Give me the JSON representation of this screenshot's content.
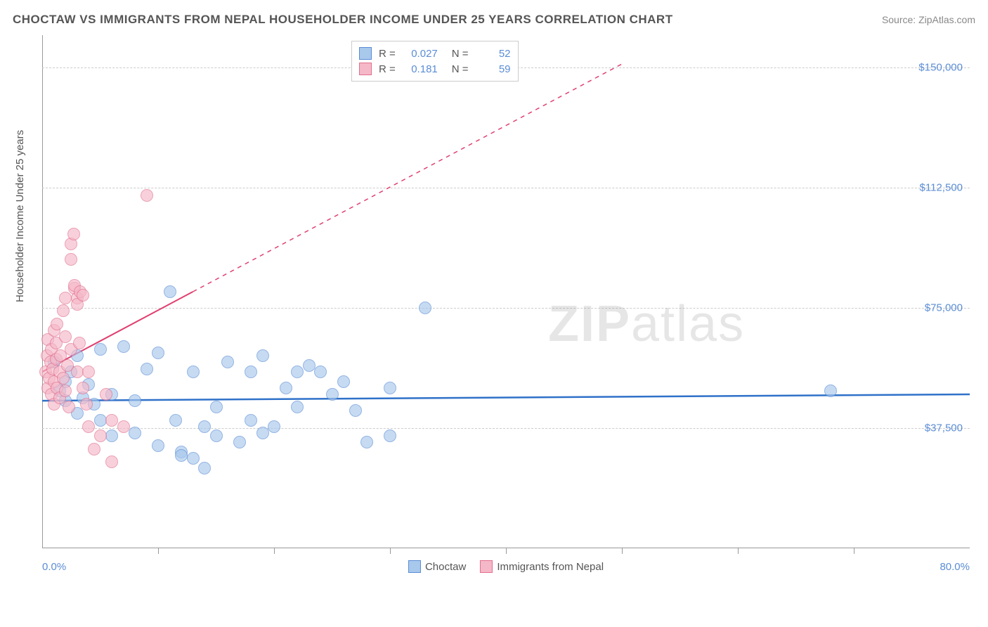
{
  "title": "CHOCTAW VS IMMIGRANTS FROM NEPAL HOUSEHOLDER INCOME UNDER 25 YEARS CORRELATION CHART",
  "source": "Source: ZipAtlas.com",
  "y_axis_label": "Householder Income Under 25 years",
  "watermark": "ZIPatlas",
  "chart": {
    "type": "scatter",
    "xlim": [
      0,
      80
    ],
    "ylim": [
      0,
      160000
    ],
    "x_tick_positions": [
      10,
      20,
      30,
      40,
      50,
      60,
      70
    ],
    "x_label_min": "0.0%",
    "x_label_max": "80.0%",
    "y_ticks": [
      {
        "v": 37500,
        "label": "$37,500"
      },
      {
        "v": 75000,
        "label": "$75,000"
      },
      {
        "v": 112500,
        "label": "$112,500"
      },
      {
        "v": 150000,
        "label": "$150,000"
      }
    ],
    "grid_color": "#cccccc",
    "background_color": "#ffffff",
    "series": [
      {
        "name": "Choctaw",
        "fill": "#a8c8ec",
        "stroke": "#5b8dd6",
        "r_value": "0.027",
        "n_value": "52",
        "trend": {
          "x1": 0,
          "y1": 46000,
          "x2": 80,
          "y2": 48000,
          "dash_from_x": 80,
          "stroke": "#2f71c9",
          "width": 2.5
        },
        "points": [
          [
            1,
            58000
          ],
          [
            1.5,
            49000
          ],
          [
            2,
            46000
          ],
          [
            2,
            52000
          ],
          [
            2.5,
            55000
          ],
          [
            3,
            42000
          ],
          [
            3,
            60000
          ],
          [
            3.5,
            47000
          ],
          [
            4,
            51000
          ],
          [
            4.5,
            45000
          ],
          [
            5,
            62000
          ],
          [
            5,
            40000
          ],
          [
            6,
            48000
          ],
          [
            6,
            35000
          ],
          [
            7,
            63000
          ],
          [
            8,
            46000
          ],
          [
            8,
            36000
          ],
          [
            9,
            56000
          ],
          [
            10,
            61000
          ],
          [
            10,
            32000
          ],
          [
            11,
            80000
          ],
          [
            11.5,
            40000
          ],
          [
            12,
            30000
          ],
          [
            12,
            29000
          ],
          [
            13,
            55000
          ],
          [
            13,
            28000
          ],
          [
            14,
            38000
          ],
          [
            14,
            25000
          ],
          [
            15,
            44000
          ],
          [
            15,
            35000
          ],
          [
            16,
            58000
          ],
          [
            17,
            33000
          ],
          [
            18,
            55000
          ],
          [
            18,
            40000
          ],
          [
            19,
            60000
          ],
          [
            19,
            36000
          ],
          [
            20,
            38000
          ],
          [
            21,
            50000
          ],
          [
            22,
            55000
          ],
          [
            22,
            44000
          ],
          [
            23,
            57000
          ],
          [
            24,
            55000
          ],
          [
            25,
            48000
          ],
          [
            26,
            52000
          ],
          [
            27,
            43000
          ],
          [
            28,
            33000
          ],
          [
            30,
            50000
          ],
          [
            30,
            35000
          ],
          [
            33,
            75000
          ],
          [
            68,
            49000
          ]
        ]
      },
      {
        "name": "Immigrants from Nepal",
        "fill": "#f5b8c8",
        "stroke": "#e16f8e",
        "r_value": "0.181",
        "n_value": "59",
        "trend": {
          "x1": 0,
          "y1": 55000,
          "x2": 13,
          "y2": 80000,
          "dash_from_x": 13,
          "dash_to_x": 50,
          "dash_to_y": 151000,
          "stroke": "#e04070",
          "width": 2
        },
        "points": [
          [
            0.3,
            55000
          ],
          [
            0.4,
            60000
          ],
          [
            0.5,
            50000
          ],
          [
            0.5,
            65000
          ],
          [
            0.6,
            53000
          ],
          [
            0.7,
            58000
          ],
          [
            0.8,
            48000
          ],
          [
            0.8,
            62000
          ],
          [
            0.9,
            56000
          ],
          [
            1,
            52000
          ],
          [
            1,
            68000
          ],
          [
            1,
            45000
          ],
          [
            1.2,
            59000
          ],
          [
            1.2,
            64000
          ],
          [
            1.3,
            50000
          ],
          [
            1.3,
            70000
          ],
          [
            1.5,
            55000
          ],
          [
            1.5,
            47000
          ],
          [
            1.6,
            60000
          ],
          [
            1.8,
            53000
          ],
          [
            1.8,
            74000
          ],
          [
            2,
            49000
          ],
          [
            2,
            66000
          ],
          [
            2,
            78000
          ],
          [
            2.2,
            57000
          ],
          [
            2.3,
            44000
          ],
          [
            2.5,
            62000
          ],
          [
            2.5,
            95000
          ],
          [
            2.5,
            90000
          ],
          [
            2.7,
            98000
          ],
          [
            2.8,
            81000
          ],
          [
            2.8,
            82000
          ],
          [
            3,
            55000
          ],
          [
            3,
            78000
          ],
          [
            3,
            76000
          ],
          [
            3.2,
            64000
          ],
          [
            3.3,
            80000
          ],
          [
            3.5,
            50000
          ],
          [
            3.5,
            79000
          ],
          [
            3.8,
            45000
          ],
          [
            4,
            55000
          ],
          [
            4,
            38000
          ],
          [
            4.5,
            31000
          ],
          [
            5,
            35000
          ],
          [
            5.5,
            48000
          ],
          [
            6,
            40000
          ],
          [
            6,
            27000
          ],
          [
            7,
            38000
          ],
          [
            9,
            110000
          ]
        ]
      }
    ]
  },
  "legend": {
    "items": [
      {
        "label": "Choctaw",
        "fill": "#a8c8ec",
        "stroke": "#5b8dd6"
      },
      {
        "label": "Immigrants from Nepal",
        "fill": "#f5b8c8",
        "stroke": "#e16f8e"
      }
    ]
  }
}
